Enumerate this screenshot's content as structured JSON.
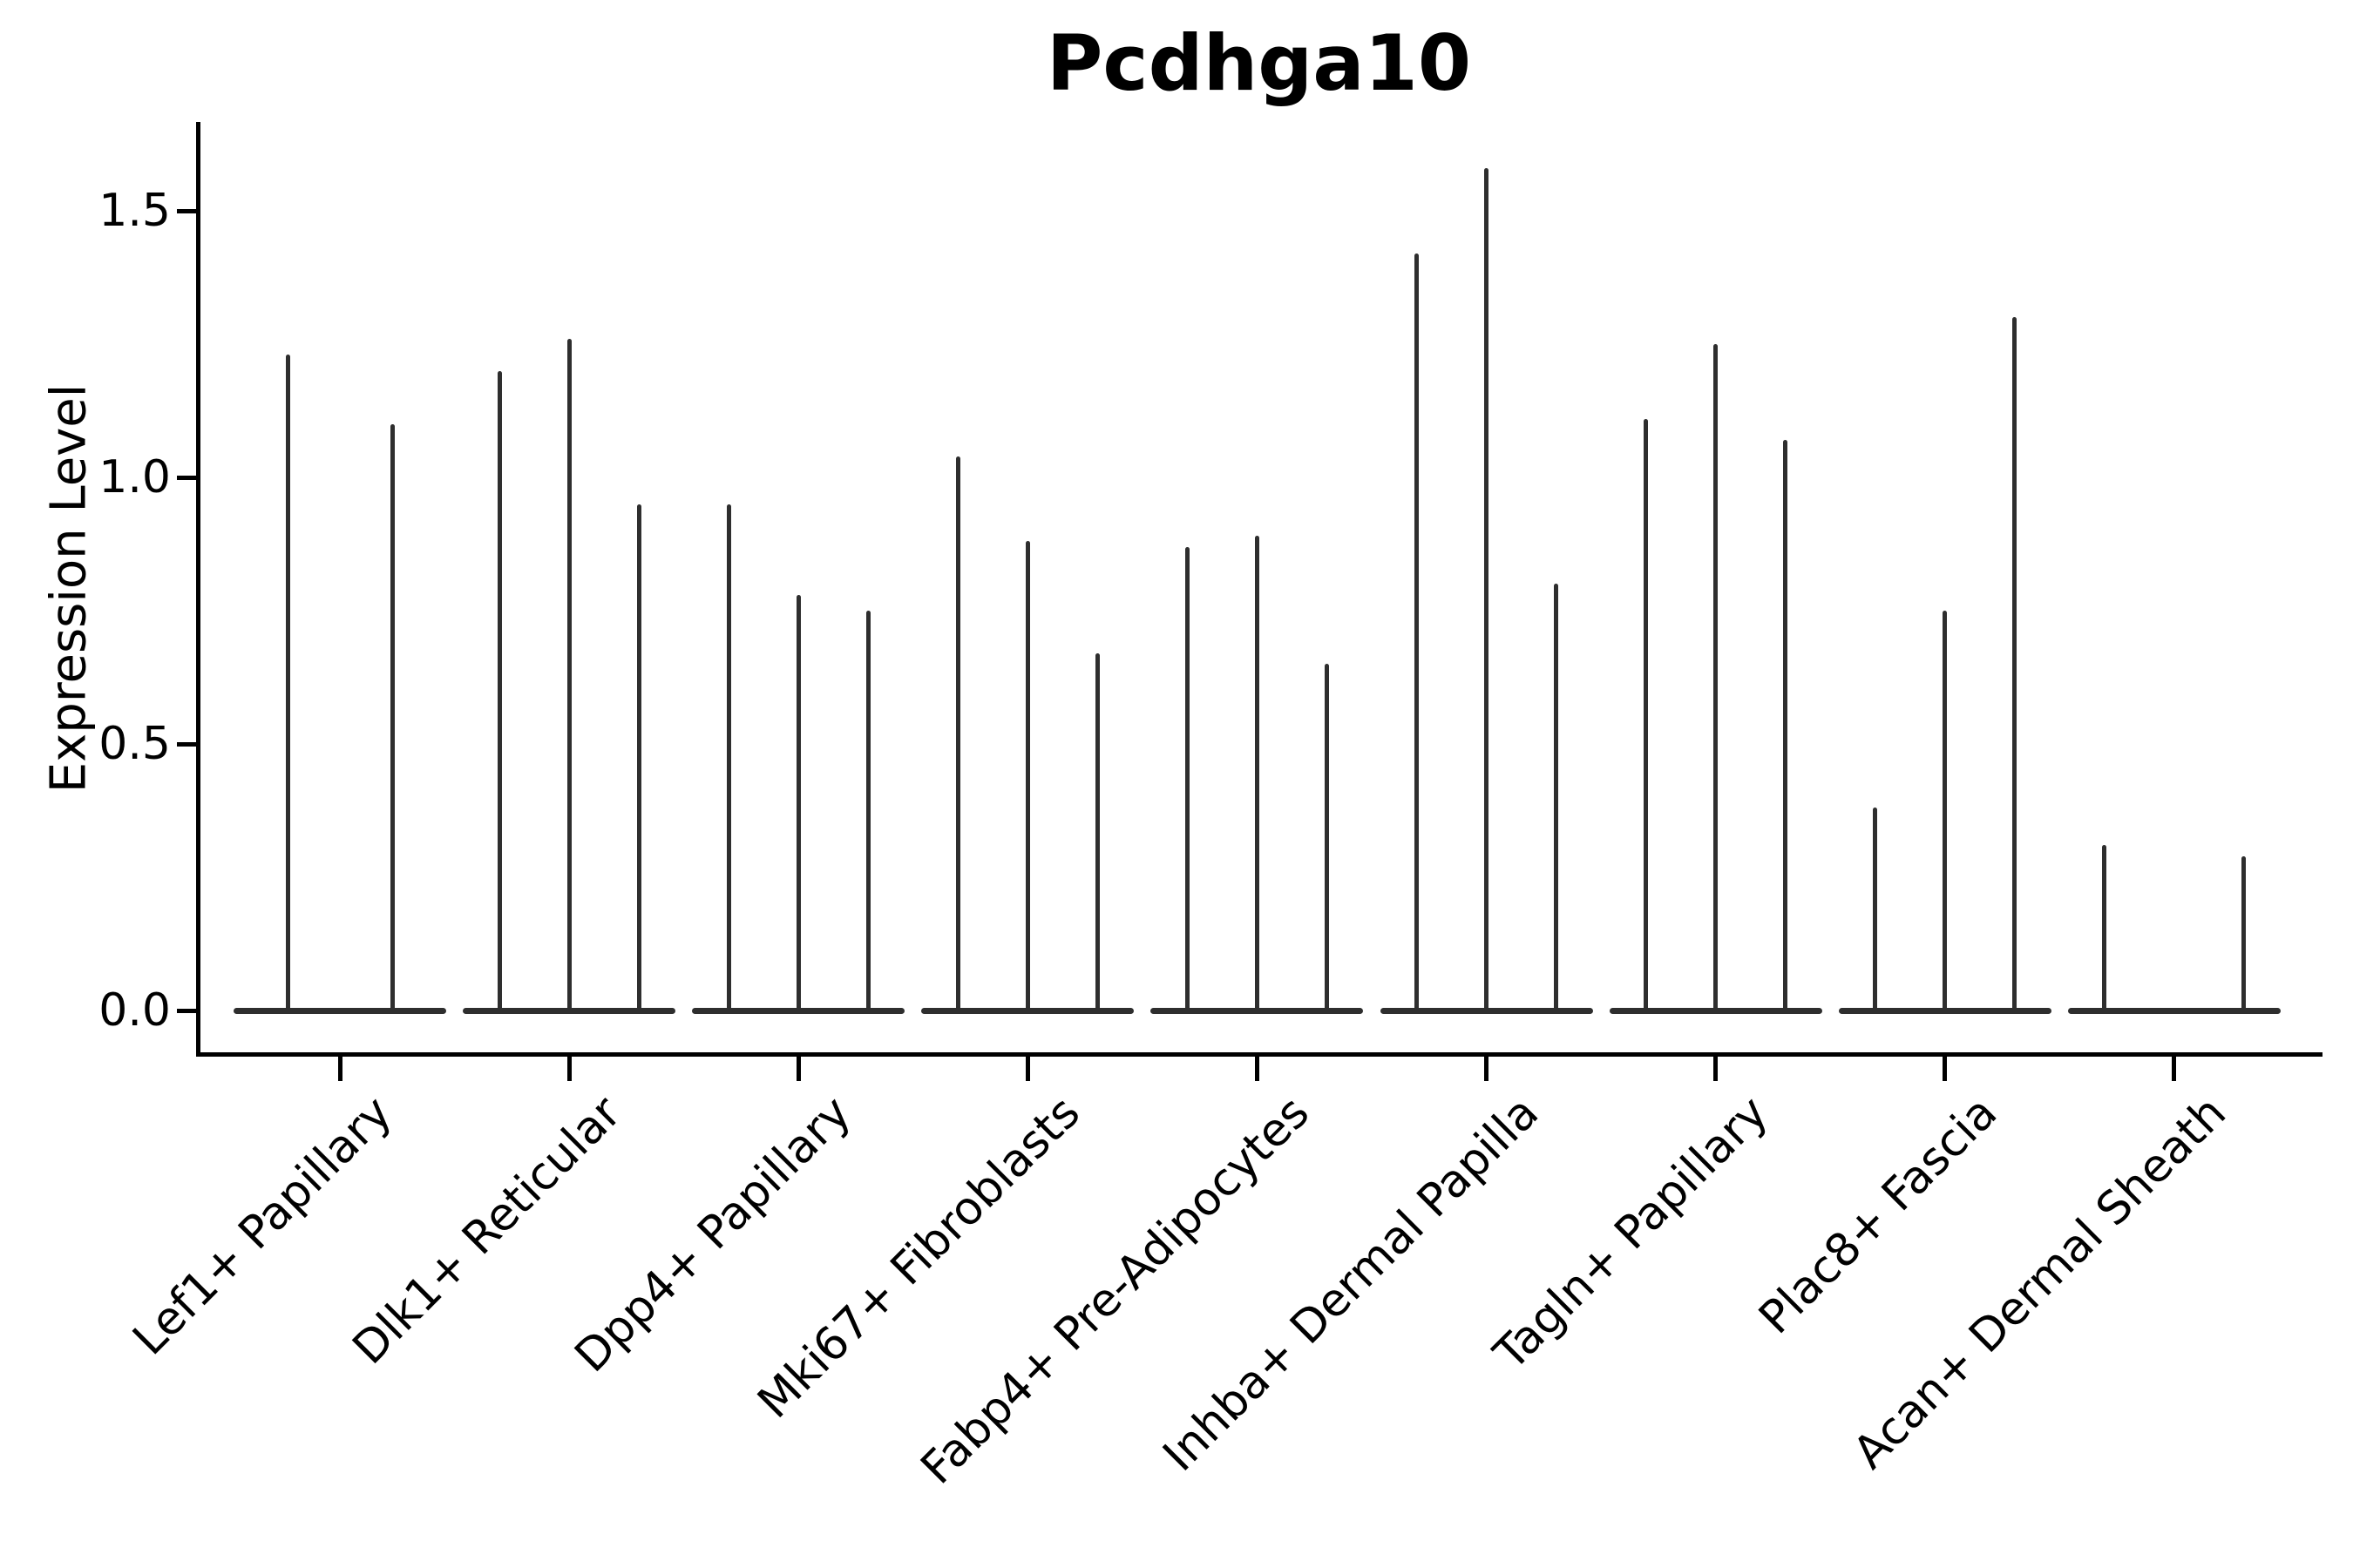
{
  "figure": {
    "title": "Pcdhga10"
  },
  "axes": {
    "ylabel": "Expression Level",
    "xlabel": "",
    "ytick_labels": [
      "0.0",
      "0.5",
      "1.0",
      "1.5"
    ]
  },
  "chart_data": {
    "type": "violin",
    "orientation": "vertical",
    "title": "Pcdhga10",
    "xlabel": "",
    "ylabel": "Expression Level",
    "ylim": [
      -0.08,
      1.67
    ],
    "yticks": [
      0.0,
      0.5,
      1.0,
      1.5
    ],
    "grid": false,
    "legend": null,
    "violin_color": "#2e2e2e",
    "axis_color": "#000000",
    "background_color": "#ffffff",
    "categories": [
      "Lef1+ Papillary",
      "Dlk1+ Reticular",
      "Dpp4+ Papillary",
      "Mki67+ Fibroblasts",
      "Fabp4+ Pre-Adipocytes",
      "Inhba+ Dermal Papilla",
      "Tagln+ Papillary",
      "Plac8+ Fascia",
      "Acan+ Dermal Sheath"
    ],
    "groups": [
      {
        "label": "Lef1+ Papillary",
        "n_violins": 2,
        "spikes": [
          {
            "slot": 0,
            "value": 1.23
          },
          {
            "slot": 1,
            "value": 1.1
          }
        ]
      },
      {
        "label": "Dlk1+ Reticular",
        "n_violins": 3,
        "spikes": [
          {
            "slot": 0,
            "value": 1.2
          },
          {
            "slot": 1,
            "value": 1.26
          },
          {
            "slot": 2,
            "value": 0.95
          }
        ]
      },
      {
        "label": "Dpp4+ Papillary",
        "n_violins": 3,
        "spikes": [
          {
            "slot": 0,
            "value": 0.95
          },
          {
            "slot": 1,
            "value": 0.78
          },
          {
            "slot": 2,
            "value": 0.75
          }
        ]
      },
      {
        "label": "Mki67+ Fibroblasts",
        "n_violins": 3,
        "spikes": [
          {
            "slot": 0,
            "value": 1.04
          },
          {
            "slot": 1,
            "value": 0.88
          },
          {
            "slot": 2,
            "value": 0.67
          }
        ]
      },
      {
        "label": "Fabp4+ Pre-Adipocytes",
        "n_violins": 3,
        "spikes": [
          {
            "slot": 0,
            "value": 0.87
          },
          {
            "slot": 1,
            "value": 0.89
          },
          {
            "slot": 2,
            "value": 0.65
          }
        ]
      },
      {
        "label": "Inhba+ Dermal Papilla",
        "n_violins": 3,
        "spikes": [
          {
            "slot": 0,
            "value": 1.42
          },
          {
            "slot": 1,
            "value": 1.58
          },
          {
            "slot": 2,
            "value": 0.8
          }
        ]
      },
      {
        "label": "Tagln+ Papillary",
        "n_violins": 3,
        "spikes": [
          {
            "slot": 0,
            "value": 1.11
          },
          {
            "slot": 1,
            "value": 1.25
          },
          {
            "slot": 2,
            "value": 1.07
          }
        ]
      },
      {
        "label": "Plac8+ Fascia",
        "n_violins": 3,
        "spikes": [
          {
            "slot": 0,
            "value": 0.38
          },
          {
            "slot": 1,
            "value": 0.75
          },
          {
            "slot": 2,
            "value": 1.3
          }
        ]
      },
      {
        "label": "Acan+ Dermal Sheath",
        "n_violins": 3,
        "spikes": [
          {
            "slot": 0,
            "value": 0.31
          },
          {
            "slot": 2,
            "value": 0.29
          }
        ]
      }
    ]
  }
}
